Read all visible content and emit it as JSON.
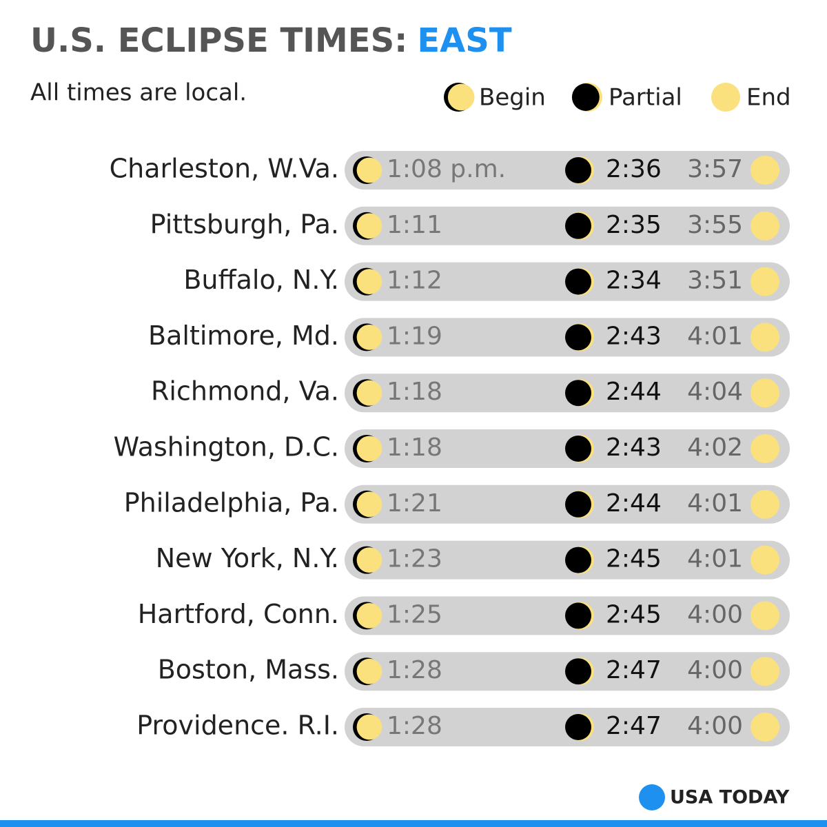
{
  "header": {
    "title": "U.S. ECLIPSE TIMES:",
    "title_accent": "EAST",
    "subtitle": "All times are local."
  },
  "legend": [
    "Begin",
    "Partial",
    "End"
  ],
  "rows": [
    {
      "city": "Charleston, W.Va.",
      "begin": "1:08 p.m.",
      "partial": "2:36",
      "end": "3:57"
    },
    {
      "city": "Pittsburgh, Pa.",
      "begin": "1:11",
      "partial": "2:35",
      "end": "3:55"
    },
    {
      "city": "Buffalo, N.Y.",
      "begin": "1:12",
      "partial": "2:34",
      "end": "3:51"
    },
    {
      "city": "Baltimore, Md.",
      "begin": "1:19",
      "partial": "2:43",
      "end": "4:01"
    },
    {
      "city": "Richmond, Va.",
      "begin": "1:18",
      "partial": "2:44",
      "end": "4:04"
    },
    {
      "city": "Washington, D.C.",
      "begin": "1:18",
      "partial": "2:43",
      "end": "4:02"
    },
    {
      "city": "Philadelphia, Pa.",
      "begin": "1:21",
      "partial": "2:44",
      "end": "4:01"
    },
    {
      "city": "New York, N.Y.",
      "begin": "1:23",
      "partial": "2:45",
      "end": "4:01"
    },
    {
      "city": "Hartford, Conn.",
      "begin": "1:25",
      "partial": "2:45",
      "end": "4:00"
    },
    {
      "city": "Boston, Mass.",
      "begin": "1:28",
      "partial": "2:47",
      "end": "4:00"
    },
    {
      "city": "Providence. R.I.",
      "begin": "1:28",
      "partial": "2:47",
      "end": "4:00"
    }
  ],
  "footer": {
    "logo": "USA TODAY"
  }
}
